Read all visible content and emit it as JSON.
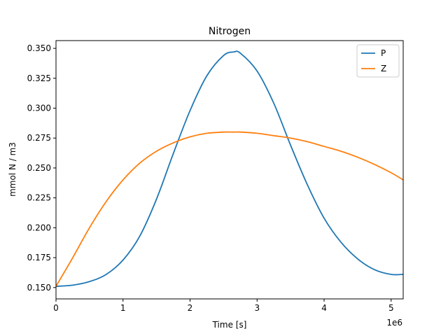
{
  "chart_data": {
    "type": "line",
    "title": "Nitrogen",
    "xlabel": "Time [s]",
    "ylabel": "mmol N / m3",
    "x_offset_label": "1e6",
    "xlim": [
      0,
      5.18
    ],
    "ylim": [
      0.1405,
      0.3565
    ],
    "xticks": [
      0,
      1,
      2,
      3,
      4,
      5
    ],
    "xtick_labels": [
      "0",
      "1",
      "2",
      "3",
      "4",
      "5"
    ],
    "yticks": [
      0.15,
      0.175,
      0.2,
      0.225,
      0.25,
      0.275,
      0.3,
      0.325,
      0.35
    ],
    "ytick_labels": [
      "0.150",
      "0.175",
      "0.200",
      "0.225",
      "0.250",
      "0.275",
      "0.300",
      "0.325",
      "0.350"
    ],
    "grid": false,
    "legend_position": "top-right",
    "x": [
      0,
      0.25,
      0.5,
      0.75,
      1.0,
      1.25,
      1.5,
      1.75,
      2.0,
      2.25,
      2.5,
      2.65,
      2.75,
      3.0,
      3.25,
      3.5,
      3.75,
      4.0,
      4.25,
      4.5,
      4.75,
      5.0,
      5.18
    ],
    "series": [
      {
        "name": "P",
        "color": "#1f77b4",
        "values": [
          0.151,
          0.152,
          0.155,
          0.161,
          0.173,
          0.193,
          0.224,
          0.262,
          0.298,
          0.327,
          0.344,
          0.347,
          0.346,
          0.331,
          0.304,
          0.269,
          0.236,
          0.208,
          0.188,
          0.174,
          0.165,
          0.161,
          0.161
        ]
      },
      {
        "name": "Z",
        "color": "#ff7f0e",
        "values": [
          0.151,
          0.175,
          0.2,
          0.222,
          0.24,
          0.254,
          0.264,
          0.271,
          0.276,
          0.279,
          0.28,
          0.28,
          0.28,
          0.279,
          0.277,
          0.275,
          0.272,
          0.268,
          0.264,
          0.259,
          0.253,
          0.246,
          0.24
        ]
      }
    ]
  }
}
